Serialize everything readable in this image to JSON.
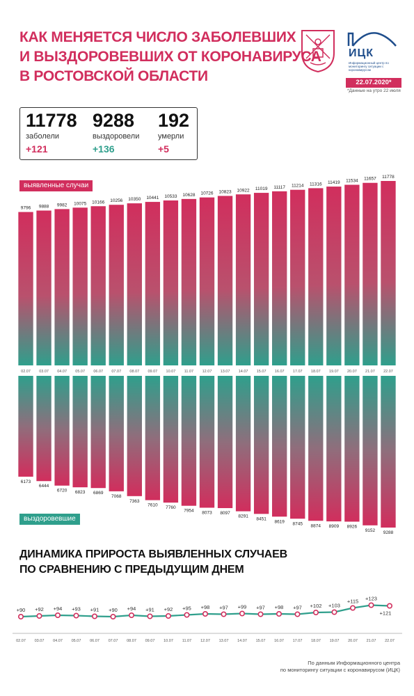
{
  "header": {
    "title_lines": [
      "Как меняется число заболевших",
      "и выздоровевших от коронавируса",
      "в Ростовской области"
    ],
    "logo_abbr": "ИЦК",
    "logo_desc": "Информационный центр по мониторингу ситуации с коронавирусом",
    "date_badge": "22.07.2020*",
    "date_note": "*Данные на утро 22 июля"
  },
  "stats": {
    "sick": {
      "value": "11778",
      "label": "заболели",
      "delta": "+121"
    },
    "recovered": {
      "value": "9288",
      "label": "выздоровели",
      "delta": "+136"
    },
    "died": {
      "value": "192",
      "label": "умерли",
      "delta": "+5"
    }
  },
  "colors": {
    "red": "#d12e5d",
    "green": "#2f9f8c"
  },
  "chart_data": [
    {
      "type": "bar",
      "title": "",
      "categories": [
        "02.07",
        "03.07",
        "04.07",
        "05.07",
        "06.07",
        "07.07",
        "08.07",
        "09.07",
        "10.07",
        "11.07",
        "12.07",
        "13.07",
        "14.07",
        "15.07",
        "16.07",
        "17.07",
        "18.07",
        "19.07",
        "20.07",
        "21.07",
        "22.07"
      ],
      "series": [
        {
          "name": "выявленные случаи",
          "values": [
            9796,
            9888,
            9982,
            10075,
            10166,
            10256,
            10350,
            10441,
            10533,
            10628,
            10726,
            10823,
            10922,
            11019,
            11117,
            11214,
            11316,
            11419,
            11534,
            11657,
            11778
          ]
        },
        {
          "name": "выздоровевшие",
          "values": [
            6173,
            6444,
            6720,
            6823,
            6869,
            7068,
            7363,
            7610,
            7760,
            7954,
            8073,
            8097,
            8291,
            8451,
            8619,
            8745,
            8874,
            8909,
            8926,
            9152,
            9288
          ]
        }
      ]
    },
    {
      "type": "line",
      "title": "Динамика прироста выявленных случаев по сравнению с предыдущим днем",
      "categories": [
        "02.07",
        "03.07",
        "04.07",
        "05.07",
        "06.07",
        "07.07",
        "08.07",
        "09.07",
        "10.07",
        "11.07",
        "12.07",
        "13.07",
        "14.07",
        "15.07",
        "16.07",
        "17.07",
        "18.07",
        "19.07",
        "20.07",
        "21.07",
        "22.07"
      ],
      "values": [
        90,
        92,
        94,
        93,
        91,
        90,
        94,
        91,
        92,
        95,
        98,
        97,
        99,
        97,
        98,
        97,
        102,
        103,
        115,
        123,
        121
      ],
      "value_labels": [
        "+90",
        "+92",
        "+94",
        "+93",
        "+91",
        "+90",
        "+94",
        "+91",
        "+92",
        "+95",
        "+98",
        "+97",
        "+99",
        "+97",
        "+98",
        "+97",
        "+102",
        "+103",
        "+115",
        "+123",
        "+121"
      ]
    }
  ],
  "section": {
    "title_lines": [
      "Динамика прироста выявленных случаев",
      "по сравнению с предыдущим днем"
    ]
  },
  "footer": {
    "source_lines": [
      "По данным Информационного центра",
      "по мониторингу ситуации с коронавирусом (ИЦК)"
    ]
  }
}
